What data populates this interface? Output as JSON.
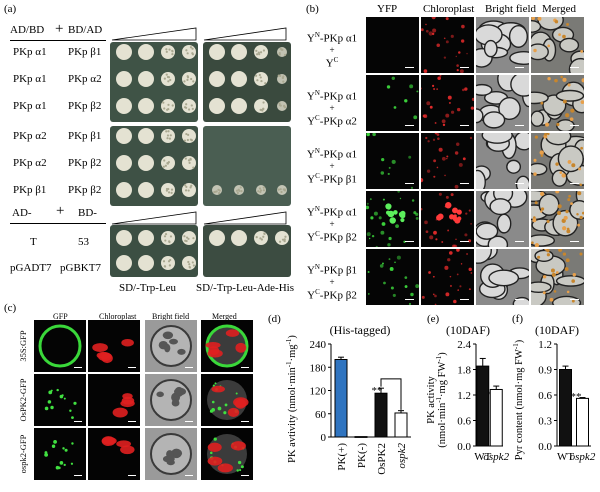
{
  "panel_a": {
    "label": "(a)",
    "header_left": "AD/BD",
    "header_plus": "+",
    "header_right": "BD/AD",
    "rows": [
      {
        "ad": "PKp α1",
        "bd": "PKp β1",
        "plate_sd2": [
          3,
          3,
          2,
          2
        ],
        "plate_sd4": [
          3,
          3,
          2,
          1
        ]
      },
      {
        "ad": "PKp α1",
        "bd": "PKp α2",
        "plate_sd2": [
          3,
          3,
          2,
          2
        ],
        "plate_sd4": [
          3,
          3,
          2,
          1
        ]
      },
      {
        "ad": "PKp α1",
        "bd": "PKp β2",
        "plate_sd2": [
          3,
          3,
          2,
          2
        ],
        "plate_sd4": [
          3,
          3,
          2,
          1
        ]
      },
      {
        "ad": "PKp α2",
        "bd": "PKp β1",
        "plate_sd2": [
          3,
          3,
          2,
          2
        ],
        "plate_sd4": [
          0,
          0,
          0,
          0
        ]
      },
      {
        "ad": "PKp α2",
        "bd": "PKp β2",
        "plate_sd2": [
          3,
          3,
          2,
          2
        ],
        "plate_sd4": [
          0,
          0,
          0,
          0
        ]
      },
      {
        "ad": "PKp β1",
        "bd": "PKp β2",
        "plate_sd2": [
          3,
          3,
          2,
          2
        ],
        "plate_sd4": [
          1,
          1,
          1,
          1
        ]
      }
    ],
    "ctrl_header_left": "AD-",
    "ctrl_header_plus": "+",
    "ctrl_header_right": "BD-",
    "ctrl_rows": [
      {
        "ad": "T",
        "bd": "53"
      },
      {
        "ad": "pGADT7",
        "bd": "pGBKT7"
      }
    ],
    "medium_left": "SD/-Trp-Leu",
    "medium_right": "SD/-Trp-Leu-Ade-His"
  },
  "panel_b": {
    "label": "(b)",
    "columns": [
      "YFP",
      "Chloroplast",
      "Bright field",
      "Merged"
    ],
    "rows": [
      {
        "line1": "Y",
        "sup1": "N",
        "rest1": "-PKp α1",
        "line3": "Y",
        "sup3": "C",
        "rest3": ""
      },
      {
        "line1": "Y",
        "sup1": "N",
        "rest1": "-PKp α1",
        "line3": "Y",
        "sup3": "C",
        "rest3": "-PKp α2"
      },
      {
        "line1": "Y",
        "sup1": "N",
        "rest1": "-PKp α1",
        "line3": "Y",
        "sup3": "C",
        "rest3": "-PKp β1"
      },
      {
        "line1": "Y",
        "sup1": "N",
        "rest1": "-PKp α1",
        "line3": "Y",
        "sup3": "C",
        "rest3": "-PKp β2"
      },
      {
        "line1": "Y",
        "sup1": "N",
        "rest1": "-PKp β1",
        "line3": "Y",
        "sup3": "C",
        "rest3": "-PKp β2"
      }
    ],
    "plus": "+"
  },
  "panel_c": {
    "label": "(c)",
    "columns": [
      "GFP",
      "Chloroplast",
      "Bright field",
      "Merged"
    ],
    "rows": [
      "35S:GFP",
      "OsPK2-GFP",
      "ospk2-GFP"
    ]
  },
  "panel_d": {
    "label": "(d)",
    "title": "(His-tagged)",
    "ylabel_main": "PK avtivity (nmol·min",
    "ylabel_sup1": "-1",
    "ylabel_mid": "·mg",
    "ylabel_sup2": "-1",
    "ylabel_end": ")",
    "sig": "**"
  },
  "panel_e": {
    "label": "(e)",
    "title": "(10DAF)",
    "ylabel_line1": "PK activity",
    "ylabel_line2": "(nmol·min",
    "ylabel_sup1": "-1",
    "ylabel_mid": "·mg FW",
    "ylabel_sup2": "-1",
    "ylabel_end": ")",
    "sig": "**"
  },
  "panel_f": {
    "label": "(f)",
    "title": "(10DAF)",
    "ylabel": "Pyr content (nmol·mg FW",
    "ylabel_sup": "-1",
    "ylabel_end": ")",
    "sig": "**"
  },
  "chart_data": [
    {
      "type": "bar",
      "categories": [
        "PK(+)",
        "PK(-)",
        "OsPK2",
        "ospk2"
      ],
      "values": [
        200,
        1,
        113,
        62
      ],
      "errors": [
        6,
        0,
        13,
        6
      ],
      "colors": [
        "#2f74c0",
        "#111111",
        "#111111",
        "#ffffff"
      ],
      "ylim": [
        0,
        240
      ],
      "yticks": [
        0,
        60,
        120,
        180,
        240
      ]
    },
    {
      "type": "bar",
      "categories": [
        "WT",
        "ospk2"
      ],
      "values": [
        1.88,
        1.33
      ],
      "errors": [
        0.18,
        0.08
      ],
      "colors": [
        "#111111",
        "#ffffff"
      ],
      "ylim": [
        0,
        2.4
      ],
      "yticks": [
        "0.0",
        "0.6",
        "1.2",
        "1.8",
        "2.4"
      ]
    },
    {
      "type": "bar",
      "categories": [
        "WT",
        "ospk2"
      ],
      "values": [
        0.9,
        0.56
      ],
      "errors": [
        0.04,
        0.01
      ],
      "colors": [
        "#111111",
        "#ffffff"
      ],
      "ylim": [
        0,
        1.2
      ],
      "yticks": [
        "0.0",
        "0.3",
        "0.6",
        "0.9",
        "1.2"
      ]
    }
  ]
}
